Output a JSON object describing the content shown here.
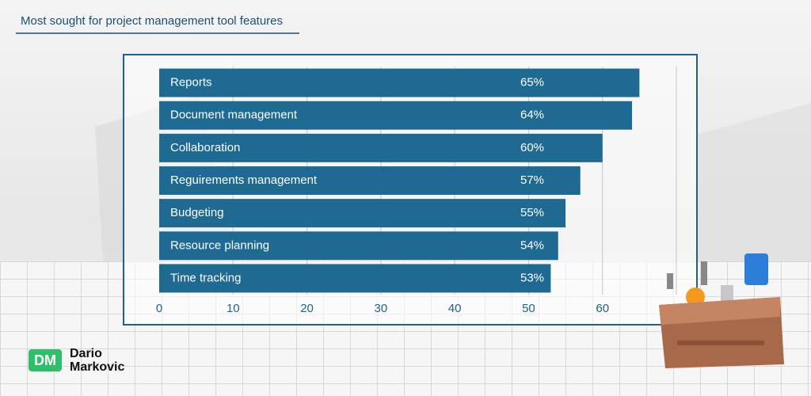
{
  "chart_data": {
    "type": "bar",
    "orientation": "horizontal",
    "title": "Most sought for project management tool features",
    "categories": [
      "Reports",
      "Document management",
      "Collaboration",
      "Reguirements management",
      "Budgeting",
      "Resource planning",
      "Time tracking"
    ],
    "values": [
      65,
      64,
      60,
      57,
      55,
      54,
      53
    ],
    "value_labels": [
      "65%",
      "64%",
      "60%",
      "57%",
      "55%",
      "54%",
      "53%"
    ],
    "color": "#1f6a93",
    "xlim": [
      0,
      70
    ],
    "xticks": [
      0,
      10,
      20,
      30,
      40,
      50,
      60
    ],
    "grid": true
  },
  "branding": {
    "logo": "DM",
    "name_line1": "Dario",
    "name_line2": "Markovic"
  }
}
